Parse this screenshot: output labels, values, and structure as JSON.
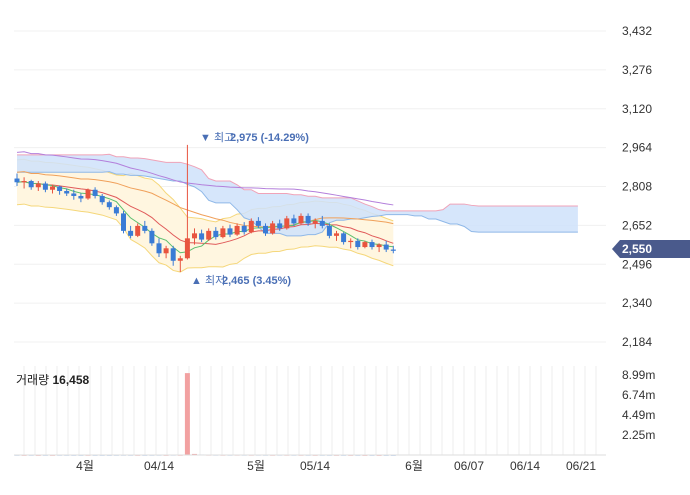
{
  "chart_data": [
    {
      "type": "candlestick",
      "title": "",
      "x_ticks": [
        "4월",
        "04/14",
        "5월",
        "05/14",
        "6월",
        "06/07",
        "06/14",
        "06/21"
      ],
      "y_ticks": [
        "3,432",
        "3,276",
        "3,120",
        "2,964",
        "2,808",
        "2,652",
        "2,496",
        "2,340",
        "2,184"
      ],
      "ylim": [
        2150,
        3460
      ],
      "current_price": {
        "label": "2,550",
        "value": 2550,
        "color": "#4a5a8c"
      },
      "annotations": {
        "high": {
          "text": "▼ 최고",
          "value_label": "2,975 (-14.29%)",
          "value": 2975,
          "color": "#4a6fb5"
        },
        "low": {
          "text": "▲ 최저",
          "value_label": "2,465 (3.45%)",
          "value": 2465,
          "color": "#4a6fb5"
        }
      },
      "colors": {
        "up": "#e8543f",
        "down": "#3a7bd5",
        "cloud_up": "#cfe2fa",
        "bollinger": "#fff3d6"
      },
      "candles": [
        [
          2840,
          2860,
          2810,
          2825
        ],
        [
          2825,
          2845,
          2800,
          2830
        ],
        [
          2830,
          2835,
          2795,
          2805
        ],
        [
          2805,
          2830,
          2790,
          2820
        ],
        [
          2820,
          2828,
          2785,
          2795
        ],
        [
          2795,
          2815,
          2780,
          2808
        ],
        [
          2808,
          2812,
          2775,
          2790
        ],
        [
          2790,
          2800,
          2770,
          2780
        ],
        [
          2780,
          2795,
          2755,
          2770
        ],
        [
          2770,
          2780,
          2745,
          2760
        ],
        [
          2760,
          2800,
          2755,
          2795
        ],
        [
          2795,
          2805,
          2760,
          2770
        ],
        [
          2770,
          2778,
          2735,
          2745
        ],
        [
          2745,
          2752,
          2715,
          2725
        ],
        [
          2725,
          2732,
          2690,
          2700
        ],
        [
          2700,
          2710,
          2620,
          2630
        ],
        [
          2630,
          2650,
          2600,
          2610
        ],
        [
          2610,
          2660,
          2605,
          2650
        ],
        [
          2650,
          2670,
          2620,
          2630
        ],
        [
          2630,
          2640,
          2570,
          2580
        ],
        [
          2580,
          2600,
          2525,
          2540
        ],
        [
          2540,
          2570,
          2520,
          2560
        ],
        [
          2560,
          2570,
          2490,
          2510
        ],
        [
          2510,
          2530,
          2465,
          2520
        ],
        [
          2520,
          2975,
          2515,
          2600
        ],
        [
          2600,
          2640,
          2575,
          2620
        ],
        [
          2620,
          2635,
          2585,
          2595
        ],
        [
          2595,
          2640,
          2590,
          2630
        ],
        [
          2630,
          2645,
          2595,
          2605
        ],
        [
          2605,
          2650,
          2600,
          2640
        ],
        [
          2640,
          2655,
          2605,
          2615
        ],
        [
          2615,
          2660,
          2610,
          2650
        ],
        [
          2650,
          2665,
          2615,
          2625
        ],
        [
          2625,
          2680,
          2620,
          2670
        ],
        [
          2670,
          2685,
          2640,
          2650
        ],
        [
          2650,
          2660,
          2610,
          2620
        ],
        [
          2620,
          2670,
          2615,
          2660
        ],
        [
          2660,
          2675,
          2630,
          2640
        ],
        [
          2640,
          2690,
          2635,
          2680
        ],
        [
          2680,
          2695,
          2650,
          2660
        ],
        [
          2660,
          2700,
          2655,
          2690
        ],
        [
          2690,
          2700,
          2650,
          2660
        ],
        [
          2660,
          2680,
          2640,
          2670
        ],
        [
          2670,
          2690,
          2640,
          2650
        ],
        [
          2650,
          2660,
          2600,
          2610
        ],
        [
          2610,
          2630,
          2590,
          2620
        ],
        [
          2620,
          2625,
          2575,
          2585
        ],
        [
          2585,
          2600,
          2560,
          2590
        ],
        [
          2590,
          2600,
          2555,
          2565
        ],
        [
          2565,
          2590,
          2560,
          2585
        ],
        [
          2585,
          2595,
          2555,
          2565
        ],
        [
          2565,
          2580,
          2545,
          2575
        ],
        [
          2575,
          2590,
          2545,
          2555
        ],
        [
          2555,
          2570,
          2540,
          2550
        ]
      ]
    },
    {
      "type": "bar",
      "title": "거래량",
      "label": "거래량",
      "value_label": "16,458",
      "y_ticks": [
        "8.99m",
        "6.74m",
        "4.49m",
        "2.25m"
      ],
      "ylim": [
        0,
        10000000
      ],
      "color_up": "#f2a1a1",
      "color_down": "#a9c8ef",
      "values": [
        30000,
        25000,
        28000,
        22000,
        26000,
        24000,
        30000,
        27000,
        25000,
        23000,
        31000,
        26000,
        24000,
        22000,
        28000,
        32000,
        29000,
        27000,
        25000,
        30000,
        35000,
        28000,
        40000,
        33000,
        9200000,
        120000,
        60000,
        45000,
        40000,
        38000,
        36000,
        42000,
        39000,
        37000,
        41000,
        35000,
        33000,
        38000,
        36000,
        34000,
        32000,
        30000,
        29000,
        31000,
        28000,
        27000,
        26000,
        25000,
        24000,
        23000,
        22000,
        21000,
        20000,
        16458
      ]
    }
  ]
}
